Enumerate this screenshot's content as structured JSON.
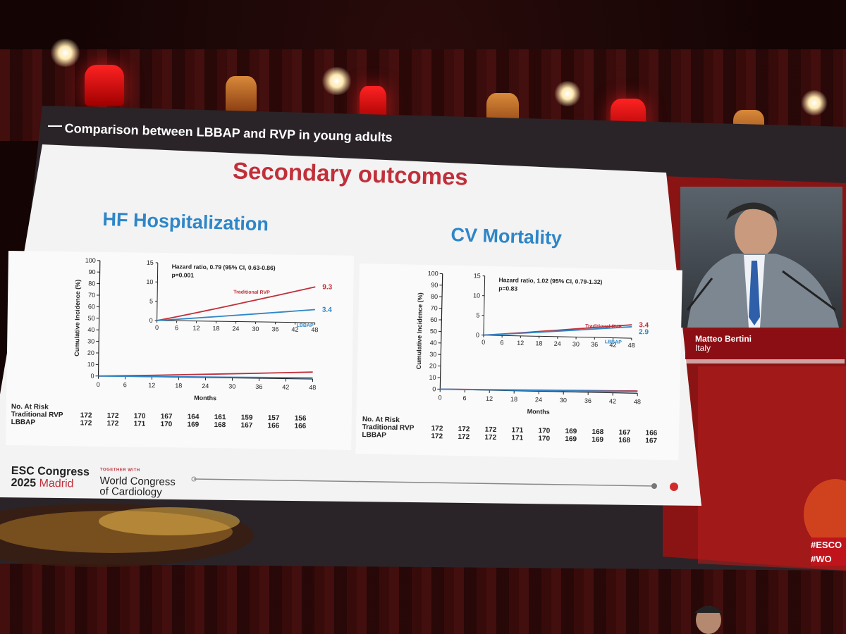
{
  "slide": {
    "title": "Comparison between LBBAP and RVP in young adults",
    "headline": "Secondary outcomes",
    "left_subtitle": "HF Hospitalization",
    "right_subtitle": "CV Mortality"
  },
  "left_chart": {
    "ylabel": "Cumulative Incidence (%)",
    "xlabel": "Months",
    "yticks": [
      "100",
      "90",
      "80",
      "70",
      "60",
      "50",
      "40",
      "30",
      "20",
      "10",
      "0"
    ],
    "xticks": [
      "0",
      "6",
      "12",
      "18",
      "24",
      "30",
      "36",
      "42",
      "48"
    ],
    "inset": {
      "yticks": [
        "15",
        "10",
        "5",
        "0"
      ],
      "xticks": [
        "0",
        "6",
        "12",
        "18",
        "24",
        "30",
        "36",
        "42",
        "48"
      ],
      "hr_text": "Hazard ratio, 0.79 (95% CI, 0.63-0.86)",
      "p_text": "p=0.001",
      "rvp_label": "Traditional RVP",
      "rvp_end": "9.3",
      "lbbap_label": "LBBAP",
      "lbbap_end": "3.4"
    },
    "risk": {
      "heading": "No. At Risk",
      "rows": [
        {
          "label": "Traditional RVP",
          "values": [
            "172",
            "172",
            "170",
            "167",
            "164",
            "161",
            "159",
            "157",
            "156"
          ]
        },
        {
          "label": "LBBAP",
          "values": [
            "172",
            "172",
            "171",
            "170",
            "169",
            "168",
            "167",
            "166",
            "166"
          ]
        }
      ]
    }
  },
  "right_chart": {
    "ylabel": "Cumulative Incidence (%)",
    "xlabel": "Months",
    "yticks": [
      "100",
      "90",
      "80",
      "70",
      "60",
      "50",
      "40",
      "30",
      "20",
      "10",
      "0"
    ],
    "xticks": [
      "0",
      "6",
      "12",
      "18",
      "24",
      "30",
      "36",
      "42",
      "48"
    ],
    "inset": {
      "yticks": [
        "15",
        "10",
        "5",
        "0"
      ],
      "xticks": [
        "0",
        "6",
        "12",
        "18",
        "24",
        "30",
        "36",
        "42",
        "48"
      ],
      "hr_text": "Hazard ratio, 1.02 (95% CI, 0.79-1.32)",
      "p_text": "p=0.83",
      "rvp_label": "Traditional RVP",
      "rvp_end": "3.4",
      "lbbap_label": "LBBAP",
      "lbbap_end": "2.9"
    },
    "risk": {
      "heading": "No. At Risk",
      "rows": [
        {
          "label": "Traditional RVP",
          "values": [
            "172",
            "172",
            "172",
            "171",
            "170",
            "169",
            "168",
            "167",
            "166"
          ]
        },
        {
          "label": "LBBAP",
          "values": [
            "172",
            "172",
            "172",
            "171",
            "170",
            "169",
            "169",
            "168",
            "167"
          ]
        }
      ]
    }
  },
  "footer": {
    "esc_line1": "ESC Congress",
    "esc_year": "2025",
    "esc_city": "Madrid",
    "together": "TOGETHER WITH",
    "wcc_line1": "World Congress",
    "wcc_line2": "of Cardiology"
  },
  "speaker": {
    "name": "Matteo Bertini",
    "country": "Italy"
  },
  "hashtags": [
    "#ESCO",
    "#WO"
  ],
  "colors": {
    "headline": "#c0303a",
    "subtitle": "#2e86c8",
    "rvp_line": "#c0303a",
    "lbbap_line": "#2e86c8"
  }
}
